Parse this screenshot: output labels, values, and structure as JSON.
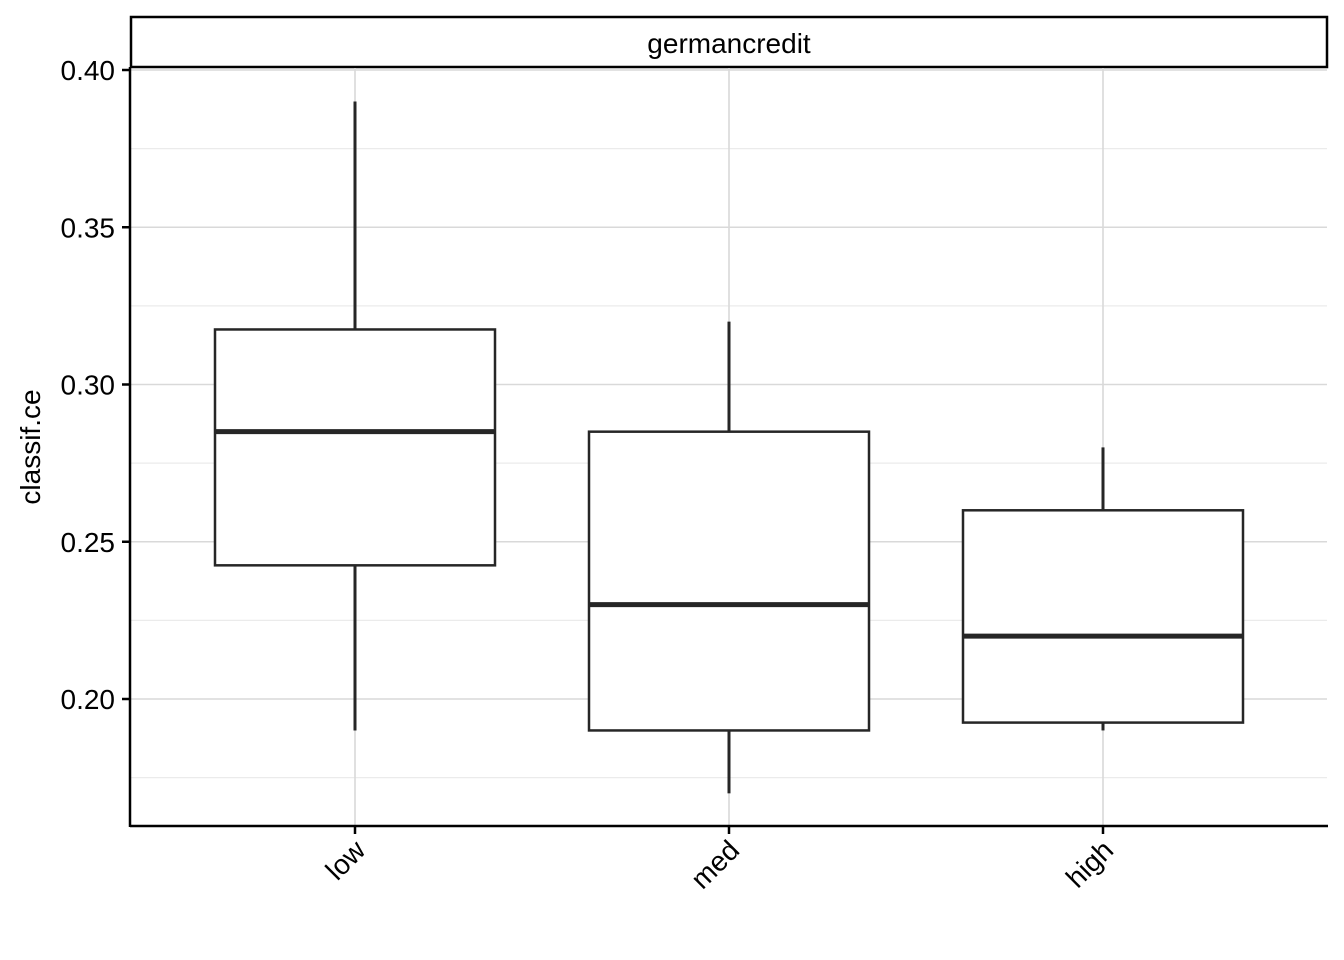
{
  "chart_data": {
    "type": "boxplot",
    "facet": "germancredit",
    "xlabel": "",
    "ylabel": "classif.ce",
    "ylim": [
      0.16,
      0.4
    ],
    "yticks": [
      0.2,
      0.25,
      0.3,
      0.35,
      0.4
    ],
    "ytick_labels": [
      "0.20",
      "0.25",
      "0.30",
      "0.35",
      "0.40"
    ],
    "grid": true,
    "categories": [
      "low",
      "med",
      "high"
    ],
    "boxes": [
      {
        "category": "low",
        "whisker_low": 0.19,
        "q1": 0.2425,
        "median": 0.285,
        "q3": 0.3175,
        "whisker_high": 0.39
      },
      {
        "category": "med",
        "whisker_low": 0.17,
        "q1": 0.19,
        "median": 0.23,
        "q3": 0.285,
        "whisker_high": 0.32
      },
      {
        "category": "high",
        "whisker_low": 0.19,
        "q1": 0.1925,
        "median": 0.22,
        "q3": 0.26,
        "whisker_high": 0.28
      }
    ]
  }
}
